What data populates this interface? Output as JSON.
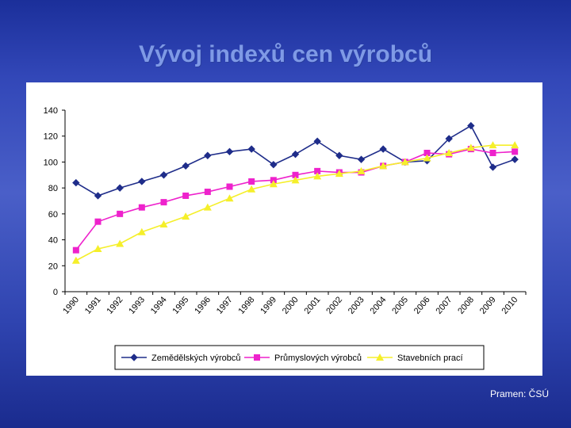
{
  "slide": {
    "title": "Vývoj indexů cen výrobců",
    "source": "Pramen: ČSÚ"
  },
  "colors": {
    "series_1": "#1f2d8a",
    "series_2": "#ee22cc",
    "series_3": "#f5ef2a"
  },
  "chart_data": {
    "type": "line",
    "title": "",
    "xlabel": "",
    "ylabel": "",
    "ylim": [
      0,
      140
    ],
    "yticks": [
      0,
      20,
      40,
      60,
      80,
      100,
      120,
      140
    ],
    "grid": false,
    "legend_position": "bottom",
    "categories": [
      "1990",
      "1991",
      "1992",
      "1993",
      "1994",
      "1995",
      "1996",
      "1997",
      "1998",
      "1999",
      "2000",
      "2001",
      "2002",
      "2003",
      "2004",
      "2005",
      "2006",
      "2007",
      "2008",
      "2009",
      "2010"
    ],
    "series": [
      {
        "name": "Zemědělských výrobců",
        "marker": "diamond",
        "values": [
          84,
          74,
          80,
          85,
          90,
          97,
          105,
          108,
          110,
          98,
          106,
          116,
          105,
          102,
          110,
          100,
          101,
          118,
          128,
          96,
          102
        ]
      },
      {
        "name": "Průmyslových výrobců",
        "marker": "square",
        "values": [
          32,
          54,
          60,
          65,
          69,
          74,
          77,
          81,
          85,
          86,
          90,
          93,
          92,
          92,
          97,
          100,
          107,
          106,
          110,
          107,
          108
        ]
      },
      {
        "name": "Stavebních prací",
        "marker": "triangle",
        "values": [
          24,
          33,
          37,
          46,
          52,
          58,
          65,
          72,
          79,
          83,
          86,
          89,
          91,
          93,
          97,
          100,
          103,
          107,
          111,
          113,
          113
        ]
      }
    ]
  }
}
